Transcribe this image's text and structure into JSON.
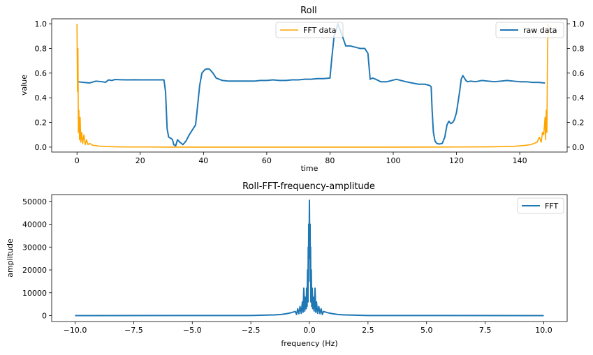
{
  "chart_data": [
    {
      "type": "line",
      "title": "Roll",
      "xlabel": "time",
      "ylabel": "value",
      "xlim": [
        -8,
        155
      ],
      "ylim": [
        -0.04,
        1.04
      ],
      "ylim_right": [
        -0.04,
        1.04
      ],
      "xticks": [
        0,
        20,
        40,
        60,
        80,
        100,
        120,
        140
      ],
      "yticks": [
        0.0,
        0.2,
        0.4,
        0.6,
        0.8,
        1.0
      ],
      "yticks_right": [
        0.0,
        0.2,
        0.4,
        0.6,
        0.8,
        1.0
      ],
      "series": [
        {
          "name": "raw data",
          "axis": "right",
          "color": "#1f77b4",
          "x": [
            0.3,
            2,
            4,
            6,
            8,
            9,
            10,
            11,
            12,
            14,
            16,
            18,
            20,
            22,
            24,
            26,
            27.5,
            28,
            28.5,
            29,
            29.8,
            30.2,
            30.6,
            31.2,
            31.8,
            32.5,
            33.5,
            34.5,
            35.5,
            36.5,
            37.5,
            38,
            38.8,
            39.5,
            40.5,
            41.5,
            42,
            43,
            44,
            46,
            48,
            50,
            52,
            54,
            56,
            58,
            60,
            62,
            64,
            66,
            68,
            70,
            72,
            74,
            76,
            78,
            80,
            80.5,
            81.3,
            82,
            82.5,
            83.5,
            85,
            86.5,
            88,
            89.5,
            91,
            92,
            92.7,
            93.5,
            94.5,
            96,
            98,
            99.5,
            101,
            102.5,
            104,
            106,
            108,
            110,
            111.5,
            112,
            112.3,
            112.7,
            113.2,
            113.8,
            114.5,
            115.5,
            116.3,
            117,
            117.6,
            118.2,
            118.8,
            119.3,
            120,
            121,
            121.5,
            122,
            122.5,
            123,
            123.5,
            124.5,
            126,
            128,
            130,
            132,
            134,
            136,
            138,
            140,
            142,
            144,
            146,
            148
          ],
          "y": [
            0.53,
            0.525,
            0.52,
            0.535,
            0.53,
            0.525,
            0.545,
            0.54,
            0.548,
            0.546,
            0.545,
            0.546,
            0.545,
            0.545,
            0.545,
            0.545,
            0.545,
            0.45,
            0.15,
            0.08,
            0.07,
            0.06,
            0.02,
            0.01,
            0.06,
            0.04,
            0.02,
            0.05,
            0.1,
            0.14,
            0.18,
            0.3,
            0.5,
            0.6,
            0.63,
            0.635,
            0.63,
            0.6,
            0.56,
            0.54,
            0.535,
            0.535,
            0.535,
            0.535,
            0.535,
            0.54,
            0.54,
            0.545,
            0.54,
            0.54,
            0.545,
            0.545,
            0.55,
            0.55,
            0.555,
            0.555,
            0.56,
            0.7,
            0.9,
            0.95,
            1.0,
            0.93,
            0.82,
            0.82,
            0.81,
            0.8,
            0.8,
            0.76,
            0.55,
            0.56,
            0.55,
            0.53,
            0.53,
            0.54,
            0.55,
            0.54,
            0.53,
            0.52,
            0.51,
            0.51,
            0.5,
            0.49,
            0.3,
            0.12,
            0.05,
            0.03,
            0.025,
            0.03,
            0.08,
            0.18,
            0.21,
            0.19,
            0.2,
            0.22,
            0.28,
            0.45,
            0.55,
            0.58,
            0.56,
            0.54,
            0.53,
            0.535,
            0.53,
            0.54,
            0.535,
            0.53,
            0.535,
            0.54,
            0.535,
            0.53,
            0.53,
            0.525,
            0.525,
            0.52
          ]
        },
        {
          "name": "FFT data",
          "axis": "left",
          "color": "#ffa500",
          "x": [
            0,
            0.15,
            0.3,
            0.45,
            0.6,
            0.8,
            1.0,
            1.2,
            1.5,
            1.8,
            2.2,
            2.6,
            3.0,
            3.5,
            4,
            5,
            6,
            7,
            8,
            10,
            13,
            17,
            22,
            30,
            50,
            75,
            100,
            120,
            130,
            135,
            138,
            140,
            142,
            143.5,
            144.5,
            145.5,
            146.2,
            146.8,
            147.2,
            147.6,
            148,
            148.2,
            148.4,
            148.6,
            148.8,
            149
          ],
          "y": [
            1.0,
            0.45,
            0.8,
            0.12,
            0.3,
            0.06,
            0.24,
            0.04,
            0.12,
            0.03,
            0.1,
            0.02,
            0.06,
            0.02,
            0.03,
            0.015,
            0.012,
            0.008,
            0.006,
            0.004,
            0.002,
            0.001,
            0.001,
            0.0,
            0.0,
            0.0,
            0.0,
            0.001,
            0.002,
            0.004,
            0.006,
            0.01,
            0.015,
            0.02,
            0.03,
            0.04,
            0.08,
            0.04,
            0.12,
            0.1,
            0.24,
            0.06,
            0.3,
            0.12,
            0.8,
            1.0
          ]
        }
      ],
      "legends": [
        {
          "label": "FFT data",
          "placement": "upper-center",
          "color": "#ffa500"
        },
        {
          "label": "raw data",
          "placement": "upper-right",
          "color": "#1f77b4"
        }
      ],
      "grid": false
    },
    {
      "type": "line",
      "title": "Roll-FFT-frequency-amplitude",
      "xlabel": "frequency (Hz)",
      "ylabel": "amplitude",
      "xlim": [
        -11.0,
        11.0
      ],
      "ylim": [
        -2600,
        53000
      ],
      "xticks": [
        -10.0,
        -7.5,
        -5.0,
        -2.5,
        0.0,
        2.5,
        5.0,
        7.5,
        10.0
      ],
      "xtick_labels": [
        "−10.0",
        "−7.5",
        "−5.0",
        "−2.5",
        "0.0",
        "2.5",
        "5.0",
        "7.5",
        "10.0"
      ],
      "yticks": [
        0,
        10000,
        20000,
        30000,
        40000,
        50000
      ],
      "series": [
        {
          "name": "FFT",
          "color": "#1f77b4",
          "x": [
            -10,
            -2.5,
            -1.5,
            -1.2,
            -1.0,
            -0.8,
            -0.6,
            -0.55,
            -0.5,
            -0.45,
            -0.4,
            -0.35,
            -0.3,
            -0.27,
            -0.24,
            -0.2,
            -0.17,
            -0.14,
            -0.12,
            -0.1,
            -0.08,
            -0.06,
            -0.05,
            -0.04,
            -0.03,
            -0.02,
            -0.01,
            0.0,
            0.01,
            0.02,
            0.03,
            0.04,
            0.05,
            0.06,
            0.08,
            0.1,
            0.12,
            0.14,
            0.17,
            0.2,
            0.24,
            0.27,
            0.3,
            0.35,
            0.4,
            0.45,
            0.5,
            0.55,
            0.6,
            0.8,
            1.0,
            1.2,
            1.5,
            2.5,
            10
          ],
          "y": [
            0,
            50,
            300,
            500,
            800,
            1200,
            1800,
            500,
            3000,
            800,
            4000,
            1000,
            6000,
            1500,
            12000,
            2000,
            8000,
            3000,
            12000,
            4000,
            20000,
            6000,
            30000,
            15000,
            40000,
            25000,
            35000,
            50500,
            35000,
            25000,
            40000,
            15000,
            30000,
            6000,
            20000,
            4000,
            12000,
            3000,
            8000,
            2000,
            12000,
            1500,
            6000,
            1000,
            4000,
            800,
            3000,
            500,
            1800,
            1200,
            800,
            500,
            300,
            50,
            0
          ]
        }
      ],
      "legends": [
        {
          "label": "FFT",
          "placement": "upper-right",
          "color": "#1f77b4"
        }
      ],
      "grid": false
    }
  ]
}
